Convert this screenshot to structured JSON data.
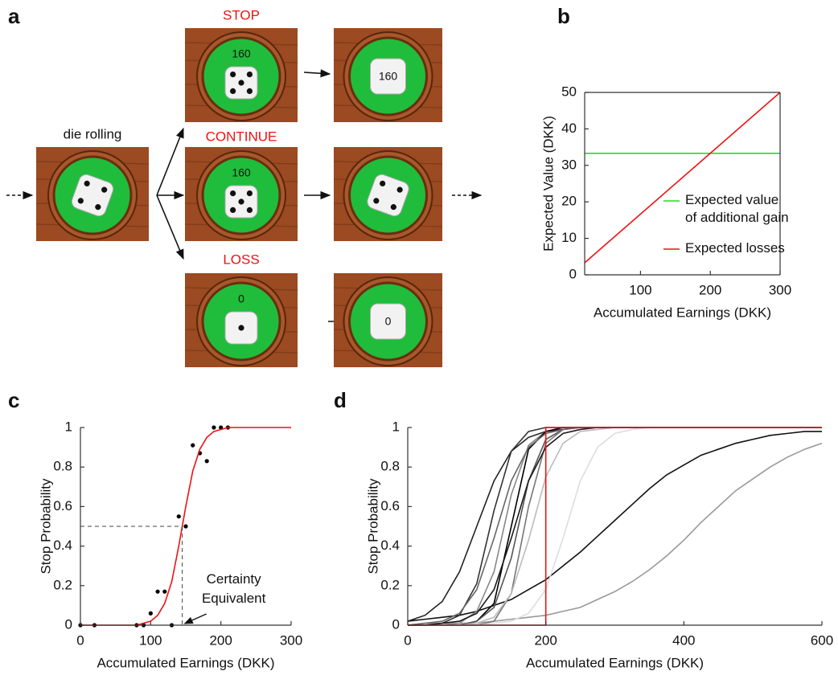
{
  "diagram": {
    "panel": "a",
    "label": "die rolling",
    "branches": [
      {
        "label": "STOP",
        "scores": [
          160,
          160
        ]
      },
      {
        "label": "CONTINUE",
        "scores": [
          160
        ]
      },
      {
        "label": "LOSS",
        "scores": [
          0,
          0
        ]
      }
    ]
  },
  "chart_data": [
    {
      "panel": "b",
      "type": "line",
      "x_label": "Accumulated Earnings (DKK)",
      "y_label": "Expected Value (DKK)",
      "xlim": [
        20,
        300
      ],
      "xticks": [
        100,
        200,
        300
      ],
      "ylim": [
        0,
        50
      ],
      "yticks": [
        0,
        10,
        20,
        30,
        40,
        50
      ],
      "box": true,
      "legend": "lower right",
      "series": [
        {
          "name": "Expected value of additional gain",
          "color": "#22dd22",
          "x": [
            20,
            300
          ],
          "values": [
            33.3,
            33.3
          ]
        },
        {
          "name": "Expected losses",
          "color": "#ee1111",
          "x": [
            20,
            300
          ],
          "values": [
            3.3,
            50
          ]
        }
      ]
    },
    {
      "panel": "c",
      "type": "line",
      "x_label": "Accumulated Earnings (DKK)",
      "y_label": "Stop Probability",
      "xlim": [
        0,
        300
      ],
      "xticks": [
        0,
        100,
        200,
        300
      ],
      "ylim": [
        0,
        1
      ],
      "yticks": [
        0,
        0.2,
        0.4,
        0.6,
        0.8,
        1
      ],
      "series": [
        {
          "color": "#000000",
          "marker": true,
          "x": [
            0,
            20,
            80,
            90,
            100,
            110,
            120,
            130,
            140,
            150,
            160,
            170,
            180,
            190,
            200,
            210
          ],
          "values": [
            0,
            0,
            0,
            0,
            0.06,
            0.17,
            0.17,
            0,
            0.55,
            0.5,
            0.91,
            0.87,
            0.83,
            1,
            1,
            1
          ]
        },
        {
          "color": "#ee1111",
          "x": [
            0,
            10,
            20,
            30,
            40,
            50,
            60,
            70,
            80,
            90,
            100,
            110,
            120,
            130,
            140,
            150,
            160,
            170,
            180,
            190,
            200,
            210,
            220,
            230,
            240,
            250,
            260,
            270,
            280,
            290,
            300
          ],
          "values": [
            0,
            0,
            0,
            0,
            0,
            0,
            0,
            0,
            0,
            0.01,
            0.02,
            0.05,
            0.11,
            0.22,
            0.4,
            0.6,
            0.78,
            0.89,
            0.95,
            0.98,
            0.99,
            1,
            1,
            1,
            1,
            1,
            1,
            1,
            1,
            1,
            1
          ]
        }
      ],
      "ce": {
        "x": 145,
        "y": 0.5
      },
      "annotation": "Certainty Equivalent"
    },
    {
      "panel": "d",
      "type": "line",
      "x_label": "Accumulated Earnings (DKK)",
      "y_label": "Stop Probability",
      "xlim": [
        0,
        600
      ],
      "xticks": [
        0,
        200,
        400,
        600
      ],
      "ylim": [
        0,
        1
      ],
      "yticks": [
        0,
        0.2,
        0.4,
        0.6,
        0.8,
        1
      ],
      "x": [
        0,
        25,
        50,
        75,
        100,
        125,
        150,
        175,
        200,
        225,
        250,
        275,
        300,
        325,
        350,
        375,
        400,
        425,
        450,
        475,
        500,
        525,
        550,
        575,
        600
      ],
      "series": [
        {
          "color": "#111111",
          "values": [
            0.02,
            0.03,
            0.04,
            0.05,
            0.07,
            0.1,
            0.13,
            0.18,
            0.23,
            0.3,
            0.37,
            0.45,
            0.53,
            0.61,
            0.69,
            0.76,
            0.81,
            0.86,
            0.89,
            0.92,
            0.94,
            0.96,
            0.97,
            0.98,
            0.98
          ]
        },
        {
          "color": "#999999",
          "values": [
            0,
            0.01,
            0.01,
            0.01,
            0.01,
            0.02,
            0.03,
            0.04,
            0.05,
            0.07,
            0.09,
            0.13,
            0.17,
            0.22,
            0.28,
            0.35,
            0.43,
            0.52,
            0.6,
            0.68,
            0.74,
            0.8,
            0.85,
            0.89,
            0.92
          ]
        },
        {
          "color": "#222222",
          "values": [
            0.02,
            0.05,
            0.12,
            0.27,
            0.5,
            0.73,
            0.88,
            0.95,
            0.98,
            0.99,
            1,
            1,
            1,
            1,
            1,
            1,
            1,
            1,
            1,
            1,
            1,
            1,
            1,
            1,
            1
          ]
        },
        {
          "color": "#333333",
          "values": [
            0,
            0,
            0.01,
            0.05,
            0.21,
            0.58,
            0.88,
            0.98,
            1,
            1,
            1,
            1,
            1,
            1,
            1,
            1,
            1,
            1,
            1,
            1,
            1,
            1,
            1,
            1,
            1
          ]
        },
        {
          "color": "#888888",
          "values": [
            0,
            0,
            0,
            0.01,
            0.07,
            0.27,
            0.66,
            0.91,
            0.98,
            1,
            1,
            1,
            1,
            1,
            1,
            1,
            1,
            1,
            1,
            1,
            1,
            1,
            1,
            1,
            1
          ]
        },
        {
          "color": "#000000",
          "values": [
            0,
            0,
            0,
            0,
            0.02,
            0.11,
            0.5,
            0.89,
            0.98,
            1,
            1,
            1,
            1,
            1,
            1,
            1,
            1,
            1,
            1,
            1,
            1,
            1,
            1,
            1,
            1
          ]
        },
        {
          "color": "#555555",
          "values": [
            0,
            0,
            0,
            0,
            0.02,
            0.09,
            0.34,
            0.73,
            0.94,
            0.99,
            1,
            1,
            1,
            1,
            1,
            1,
            1,
            1,
            1,
            1,
            1,
            1,
            1,
            1,
            1
          ]
        },
        {
          "color": "#777777",
          "values": [
            0,
            0,
            0,
            0,
            0,
            0.02,
            0.16,
            0.6,
            0.92,
            0.99,
            1,
            1,
            1,
            1,
            1,
            1,
            1,
            1,
            1,
            1,
            1,
            1,
            1,
            1,
            1
          ]
        },
        {
          "color": "#bbbbbb",
          "values": [
            0,
            0,
            0,
            0,
            0.01,
            0.04,
            0.16,
            0.43,
            0.75,
            0.92,
            0.98,
            0.99,
            1,
            1,
            1,
            1,
            1,
            1,
            1,
            1,
            1,
            1,
            1,
            1,
            1
          ]
        },
        {
          "color": "#dddddd",
          "values": [
            0,
            0,
            0,
            0,
            0,
            0.01,
            0.02,
            0.06,
            0.18,
            0.44,
            0.73,
            0.9,
            0.97,
            0.99,
            1,
            1,
            1,
            1,
            1,
            1,
            1,
            1,
            1,
            1,
            1
          ]
        },
        {
          "color": "#666666",
          "values": [
            0,
            0.01,
            0.02,
            0.06,
            0.18,
            0.44,
            0.73,
            0.9,
            0.97,
            0.99,
            1,
            1,
            1,
            1,
            1,
            1,
            1,
            1,
            1,
            1,
            1,
            1,
            1,
            1,
            1
          ]
        },
        {
          "color": "#1a1a1a",
          "values": [
            0,
            0,
            0.01,
            0.02,
            0.06,
            0.18,
            0.44,
            0.73,
            0.9,
            0.97,
            0.99,
            1,
            1,
            1,
            1,
            1,
            1,
            1,
            1,
            1,
            1,
            1,
            1,
            1,
            1
          ]
        },
        {
          "color": "#ee1111",
          "x": [
            0,
            200,
            200,
            600
          ],
          "values": [
            0,
            0,
            1,
            1
          ]
        }
      ]
    }
  ]
}
